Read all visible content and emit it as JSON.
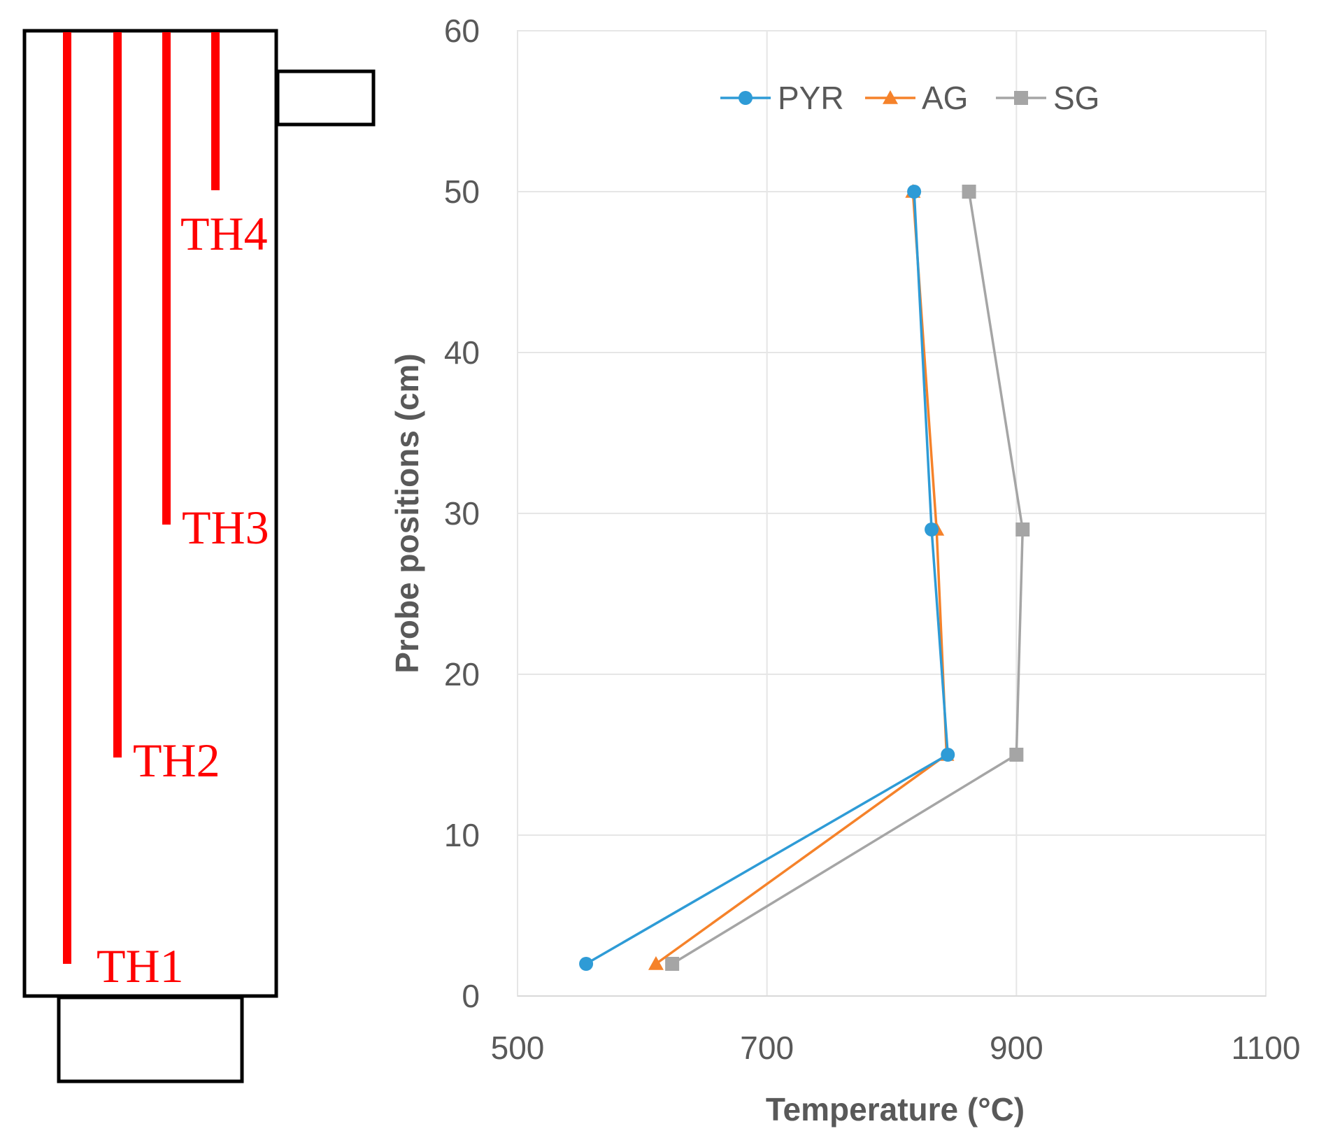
{
  "schematic": {
    "probes": [
      {
        "name": "TH1"
      },
      {
        "name": "TH2"
      },
      {
        "name": "TH3"
      },
      {
        "name": "TH4"
      }
    ],
    "probe_color": "#ff0000",
    "outline_color": "#000000"
  },
  "chart_data": {
    "type": "line",
    "title": "",
    "xlabel": "Temperature (°C)",
    "ylabel": "Probe positions (cm)",
    "xlim": [
      500,
      1100
    ],
    "ylim": [
      0,
      60
    ],
    "x_ticks": [
      500,
      700,
      900,
      1100
    ],
    "y_ticks": [
      0,
      10,
      20,
      30,
      40,
      50,
      60
    ],
    "x_tick_labels": [
      "500",
      "700",
      "900",
      "1100"
    ],
    "y_tick_labels": [
      "0",
      "10",
      "20",
      "30",
      "40",
      "50",
      "60"
    ],
    "grid": true,
    "legend_position": "top-center",
    "series": [
      {
        "name": "PYR",
        "color": "#2e9bd6",
        "marker": "circle",
        "points": [
          {
            "temperature": 555,
            "position": 2
          },
          {
            "temperature": 845,
            "position": 15
          },
          {
            "temperature": 832,
            "position": 29
          },
          {
            "temperature": 818,
            "position": 50
          }
        ]
      },
      {
        "name": "AG",
        "color": "#f5822a",
        "marker": "triangle",
        "points": [
          {
            "temperature": 611,
            "position": 2
          },
          {
            "temperature": 844,
            "position": 15
          },
          {
            "temperature": 836,
            "position": 29
          },
          {
            "temperature": 817,
            "position": 50
          }
        ]
      },
      {
        "name": "SG",
        "color": "#a5a5a5",
        "marker": "square",
        "points": [
          {
            "temperature": 624,
            "position": 2
          },
          {
            "temperature": 900,
            "position": 15
          },
          {
            "temperature": 905,
            "position": 29
          },
          {
            "temperature": 862,
            "position": 50
          }
        ]
      }
    ]
  }
}
